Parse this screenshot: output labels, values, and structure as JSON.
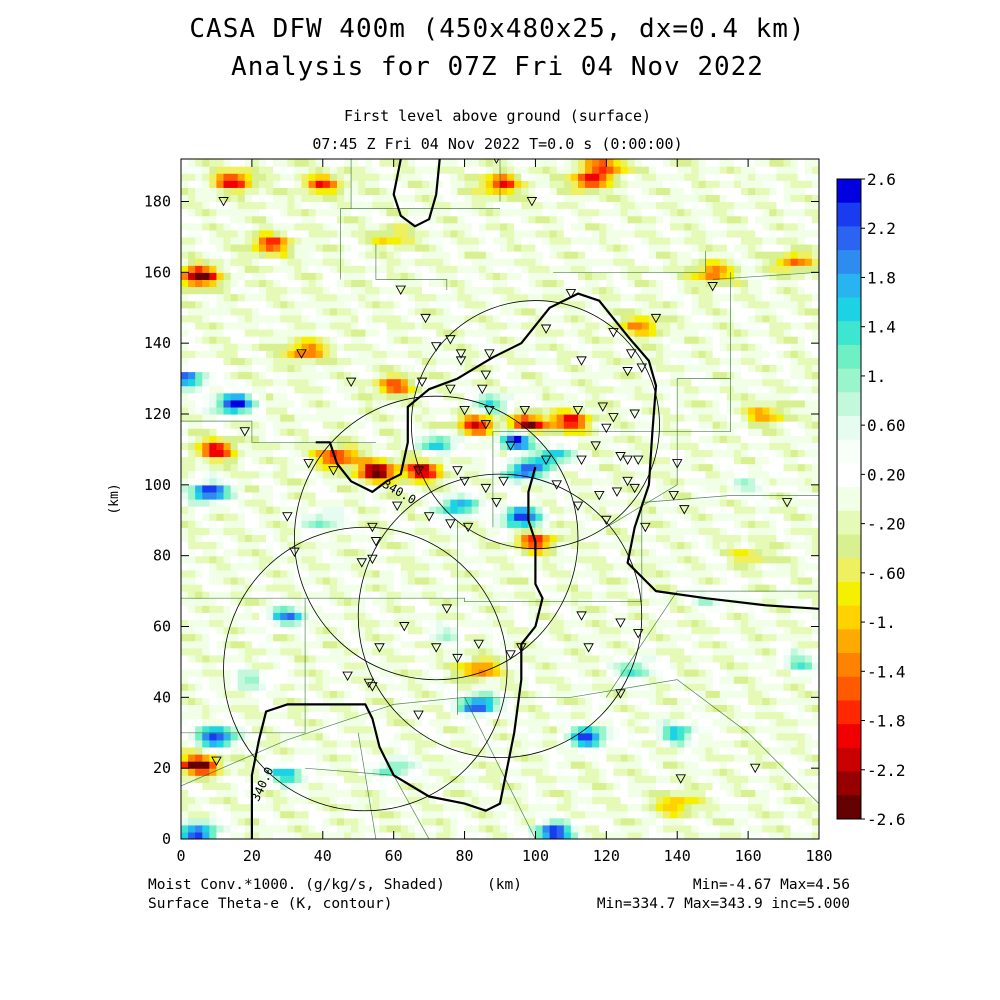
{
  "title_line1": "CASA DFW 400m (450x480x25, dx=0.4 km)",
  "title_line2": "Analysis for 07Z Fri 04 Nov 2022",
  "subtitle_line1": "First level above ground (surface)",
  "subtitle_line2": "07:45 Z Fri 04 Nov 2022    T=0.0 s (0:00:00)",
  "footer": {
    "left_line1": "Moist Conv.*1000. (g/kg/s, Shaded)",
    "left_line2": "Surface Theta-e (K, contour)",
    "center": "(km)",
    "right_line1": "Min=-4.67 Max=4.56",
    "right_line2": "Min=334.7 Max=343.9 inc=5.000"
  },
  "chart_data": {
    "type": "heatmap",
    "title": "CASA DFW 400m (450x480x25, dx=0.4 km)",
    "xlabel": "(km)",
    "ylabel": "(km)",
    "xlim": [
      0,
      180
    ],
    "ylim": [
      0,
      192
    ],
    "x_ticks": [
      "0",
      "20",
      "40",
      "60",
      "80",
      "100",
      "120",
      "140",
      "160",
      "180"
    ],
    "y_ticks": [
      "0",
      "20",
      "40",
      "60",
      "80",
      "100",
      "120",
      "140",
      "160",
      "180"
    ],
    "colorbar": {
      "min": -2.6,
      "max": 2.6,
      "labels": [
        "2.6",
        "2.2",
        "1.8",
        "1.4",
        "1.",
        "0.60",
        "0.20",
        "-.20",
        "-.60",
        "-1.",
        "-1.4",
        "-1.8",
        "-2.2",
        "-2.6"
      ],
      "colors": [
        "#0000e0",
        "#1a3cf0",
        "#2a64f0",
        "#2e8cf0",
        "#28b4f0",
        "#1ed2e6",
        "#3ee6d2",
        "#6ef0c4",
        "#9af4cc",
        "#c4f8dc",
        "#e6fcf0",
        "#f8fff8",
        "#ffffff",
        "#f0ffe6",
        "#e6fab8",
        "#d8f090",
        "#eef060",
        "#f4f000",
        "#ffd200",
        "#ffaa00",
        "#ff8200",
        "#ff5a00",
        "#ff2800",
        "#f00000",
        "#c80000",
        "#960000",
        "#640000"
      ]
    },
    "contour_labels": [
      "340.0",
      "340.0"
    ],
    "contour_value": 340.0,
    "field_stats": {
      "min": -4.67,
      "max": 4.56
    },
    "contour_stats": {
      "min": 334.7,
      "max": 343.9,
      "inc": 5.0
    },
    "radar_rings": [
      {
        "center": [
          100,
          117
        ],
        "radius": 35
      },
      {
        "center": [
          72,
          85
        ],
        "radius": 40
      },
      {
        "center": [
          52,
          48
        ],
        "radius": 40
      },
      {
        "center": [
          90,
          63
        ],
        "radius": 40
      }
    ],
    "hotspots": [
      {
        "x": 95,
        "y": 113,
        "value": 2.6
      },
      {
        "x": 97,
        "y": 104,
        "value": 2.4
      },
      {
        "x": 96,
        "y": 91,
        "value": 2.6
      },
      {
        "x": 78,
        "y": 94,
        "value": 2.0
      },
      {
        "x": 105,
        "y": 108,
        "value": 1.8
      },
      {
        "x": 98,
        "y": 117,
        "value": -2.4
      },
      {
        "x": 83,
        "y": 117,
        "value": -2.0
      },
      {
        "x": 73,
        "y": 112,
        "value": 1.6
      },
      {
        "x": 110,
        "y": 118,
        "value": -2.0
      },
      {
        "x": 88,
        "y": 123,
        "value": 1.4
      },
      {
        "x": 100,
        "y": 84,
        "value": -1.8
      },
      {
        "x": 55,
        "y": 104,
        "value": -2.6
      },
      {
        "x": 68,
        "y": 104,
        "value": -2.2
      },
      {
        "x": 44,
        "y": 108,
        "value": -2.0
      },
      {
        "x": 10,
        "y": 110,
        "value": -2.0
      },
      {
        "x": 8,
        "y": 98,
        "value": 2.6
      },
      {
        "x": 15,
        "y": 123,
        "value": 2.6
      },
      {
        "x": 2,
        "y": 130,
        "value": 2.0
      },
      {
        "x": 5,
        "y": 159,
        "value": -2.6
      },
      {
        "x": 15,
        "y": 186,
        "value": -2.0
      },
      {
        "x": 40,
        "y": 185,
        "value": -1.6
      },
      {
        "x": 90,
        "y": 185,
        "value": -1.8
      },
      {
        "x": 115,
        "y": 186,
        "value": -1.8
      },
      {
        "x": 25,
        "y": 168,
        "value": -1.8
      },
      {
        "x": 60,
        "y": 128,
        "value": -1.6
      },
      {
        "x": 35,
        "y": 138,
        "value": -1.6
      },
      {
        "x": 84,
        "y": 48,
        "value": -1.6
      },
      {
        "x": 84,
        "y": 38,
        "value": 2.4
      },
      {
        "x": 75,
        "y": 58,
        "value": 0.8
      },
      {
        "x": 30,
        "y": 63,
        "value": 1.8
      },
      {
        "x": 115,
        "y": 29,
        "value": 2.4
      },
      {
        "x": 10,
        "y": 29,
        "value": 2.6
      },
      {
        "x": 5,
        "y": 21,
        "value": -2.6
      },
      {
        "x": 30,
        "y": 18,
        "value": 1.6
      },
      {
        "x": 105,
        "y": 2,
        "value": 2.6
      },
      {
        "x": 5,
        "y": 2,
        "value": 2.4
      },
      {
        "x": 150,
        "y": 160,
        "value": -1.6
      },
      {
        "x": 173,
        "y": 163,
        "value": -1.4
      },
      {
        "x": 140,
        "y": 30,
        "value": 1.6
      },
      {
        "x": 128,
        "y": 48,
        "value": 1.4
      },
      {
        "x": 140,
        "y": 10,
        "value": -1.2
      },
      {
        "x": 175,
        "y": 50,
        "value": 1.2
      },
      {
        "x": 160,
        "y": 80,
        "value": -0.8
      },
      {
        "x": 165,
        "y": 120,
        "value": -1.2
      },
      {
        "x": 160,
        "y": 100,
        "value": 0.8
      },
      {
        "x": 40,
        "y": 90,
        "value": 1.2
      },
      {
        "x": 60,
        "y": 20,
        "value": 1.4
      },
      {
        "x": 120,
        "y": 190,
        "value": -1.6
      },
      {
        "x": 60,
        "y": 170,
        "value": -1.0
      },
      {
        "x": 130,
        "y": 145,
        "value": -1.4
      },
      {
        "x": 20,
        "y": 45,
        "value": 1.0
      },
      {
        "x": 150,
        "y": 68,
        "value": 0.8
      }
    ],
    "stations": [
      [
        12,
        180
      ],
      [
        99,
        180
      ],
      [
        89,
        192
      ],
      [
        62,
        155
      ],
      [
        110,
        154
      ],
      [
        150,
        156
      ],
      [
        134,
        147
      ],
      [
        69,
        147
      ],
      [
        76,
        141
      ],
      [
        72,
        139
      ],
      [
        87,
        137
      ],
      [
        79,
        137
      ],
      [
        79,
        135
      ],
      [
        86,
        131
      ],
      [
        103,
        144
      ],
      [
        122,
        143
      ],
      [
        127,
        137
      ],
      [
        130,
        133
      ],
      [
        126,
        132
      ],
      [
        113,
        135
      ],
      [
        76,
        127
      ],
      [
        85,
        127
      ],
      [
        80,
        121
      ],
      [
        87,
        121
      ],
      [
        86,
        117
      ],
      [
        97,
        121
      ],
      [
        112,
        121
      ],
      [
        119,
        122
      ],
      [
        122,
        119
      ],
      [
        128,
        120
      ],
      [
        120,
        116
      ],
      [
        117,
        111
      ],
      [
        124,
        108
      ],
      [
        113,
        107
      ],
      [
        93,
        111
      ],
      [
        103,
        107
      ],
      [
        126,
        107
      ],
      [
        129,
        107
      ],
      [
        68,
        129
      ],
      [
        48,
        129
      ],
      [
        34,
        137
      ],
      [
        18,
        115
      ],
      [
        36,
        106
      ],
      [
        43,
        104
      ],
      [
        67,
        104
      ],
      [
        78,
        104
      ],
      [
        80,
        101
      ],
      [
        86,
        99
      ],
      [
        91,
        101
      ],
      [
        106,
        100
      ],
      [
        118,
        97
      ],
      [
        123,
        98
      ],
      [
        126,
        101
      ],
      [
        128,
        99
      ],
      [
        139,
        97
      ],
      [
        142,
        93
      ],
      [
        140,
        106
      ],
      [
        171,
        95
      ],
      [
        70,
        91
      ],
      [
        61,
        94
      ],
      [
        76,
        89
      ],
      [
        89,
        95
      ],
      [
        112,
        94
      ],
      [
        120,
        90
      ],
      [
        131,
        88
      ],
      [
        81,
        88
      ],
      [
        54,
        88
      ],
      [
        55,
        84
      ],
      [
        54,
        79
      ],
      [
        51,
        78
      ],
      [
        30,
        91
      ],
      [
        32,
        81
      ],
      [
        56,
        54
      ],
      [
        72,
        54
      ],
      [
        78,
        51
      ],
      [
        93,
        52
      ],
      [
        96,
        54
      ],
      [
        115,
        54
      ],
      [
        124,
        61
      ],
      [
        129,
        58
      ],
      [
        47,
        46
      ],
      [
        53,
        44
      ],
      [
        67,
        35
      ],
      [
        124,
        41
      ],
      [
        54,
        43
      ],
      [
        10,
        22
      ],
      [
        141,
        17
      ],
      [
        162,
        20
      ],
      [
        113,
        63
      ],
      [
        84,
        55
      ],
      [
        75,
        65
      ],
      [
        63,
        60
      ]
    ]
  }
}
